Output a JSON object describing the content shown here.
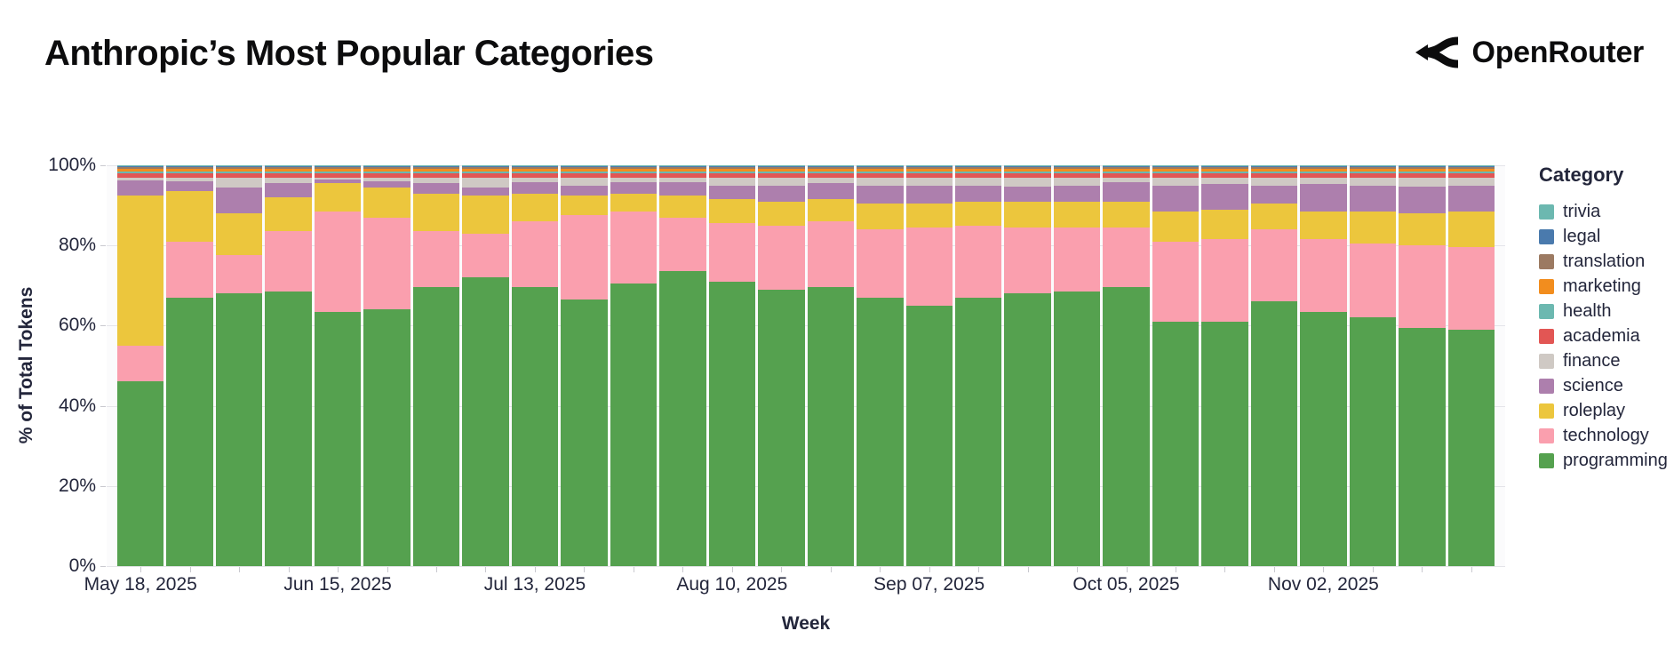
{
  "header": {
    "title": "Anthropic’s Most Popular Categories",
    "brand": "OpenRouter"
  },
  "chart_data": {
    "type": "bar",
    "variant": "stacked-100-percent",
    "title": "Anthropic’s Most Popular Categories",
    "xlabel": "Week",
    "ylabel": "% of Total Tokens",
    "legend_title": "Category",
    "legend_position": "right",
    "ylim": [
      0,
      100
    ],
    "yticks": [
      0,
      20,
      40,
      60,
      80,
      100
    ],
    "ytick_labels": [
      "0%",
      "20%",
      "40%",
      "60%",
      "80%",
      "100%"
    ],
    "x": [
      "May 18, 2025",
      "May 25, 2025",
      "Jun 01, 2025",
      "Jun 08, 2025",
      "Jun 15, 2025",
      "Jun 22, 2025",
      "Jun 29, 2025",
      "Jul 06, 2025",
      "Jul 13, 2025",
      "Jul 20, 2025",
      "Jul 27, 2025",
      "Aug 03, 2025",
      "Aug 10, 2025",
      "Aug 17, 2025",
      "Aug 24, 2025",
      "Aug 31, 2025",
      "Sep 07, 2025",
      "Sep 14, 2025",
      "Sep 21, 2025",
      "Sep 28, 2025",
      "Oct 05, 2025",
      "Oct 12, 2025",
      "Oct 19, 2025",
      "Oct 26, 2025",
      "Nov 02, 2025",
      "Nov 09, 2025",
      "Nov 16, 2025",
      "Nov 23, 2025"
    ],
    "x_tick_indices": [
      0,
      4,
      8,
      12,
      16,
      20,
      24
    ],
    "x_tick_labels": [
      "May 18, 2025",
      "Jun 15, 2025",
      "Jul 13, 2025",
      "Aug 10, 2025",
      "Sep 07, 2025",
      "Oct 05, 2025",
      "Nov 02, 2025"
    ],
    "grid": true,
    "series": [
      {
        "name": "trivia",
        "color": "#6cb8b0",
        "values": [
          0.2,
          0.2,
          0.2,
          0.2,
          0.2,
          0.2,
          0.2,
          0.2,
          0.2,
          0.2,
          0.2,
          0.2,
          0.2,
          0.2,
          0.2,
          0.2,
          0.2,
          0.2,
          0.2,
          0.2,
          0.2,
          0.2,
          0.2,
          0.2,
          0.2,
          0.2,
          0.2,
          0.2
        ]
      },
      {
        "name": "legal",
        "color": "#4a7aad",
        "values": [
          0.2,
          0.2,
          0.2,
          0.2,
          0.2,
          0.2,
          0.2,
          0.2,
          0.2,
          0.2,
          0.2,
          0.2,
          0.2,
          0.2,
          0.2,
          0.2,
          0.2,
          0.2,
          0.2,
          0.2,
          0.2,
          0.2,
          0.2,
          0.2,
          0.2,
          0.2,
          0.2,
          0.2
        ]
      },
      {
        "name": "translation",
        "color": "#9c7a62",
        "values": [
          0.4,
          0.4,
          0.4,
          0.4,
          0.4,
          0.4,
          0.4,
          0.4,
          0.4,
          0.4,
          0.4,
          0.4,
          0.4,
          0.4,
          0.4,
          0.4,
          0.4,
          0.4,
          0.4,
          0.4,
          0.4,
          0.4,
          0.4,
          0.4,
          0.4,
          0.4,
          0.4,
          0.4
        ]
      },
      {
        "name": "marketing",
        "color": "#f28d1e",
        "values": [
          0.7,
          0.7,
          0.7,
          0.7,
          0.7,
          0.7,
          0.7,
          0.7,
          0.7,
          0.7,
          0.7,
          0.7,
          0.7,
          0.7,
          0.7,
          0.7,
          0.7,
          0.7,
          0.7,
          0.7,
          0.7,
          0.7,
          0.7,
          0.7,
          0.7,
          0.7,
          0.7,
          0.7
        ]
      },
      {
        "name": "health",
        "color": "#6cb8b0",
        "values": [
          0.6,
          0.6,
          0.6,
          0.6,
          0.6,
          0.6,
          0.6,
          0.6,
          0.6,
          0.6,
          0.6,
          0.6,
          0.6,
          0.6,
          0.6,
          0.6,
          0.6,
          0.6,
          0.6,
          0.6,
          0.6,
          0.6,
          0.6,
          0.6,
          0.6,
          0.6,
          0.6,
          0.6
        ]
      },
      {
        "name": "academia",
        "color": "#e25654",
        "values": [
          1.1,
          1.1,
          1.1,
          1.1,
          1.1,
          1.1,
          1.1,
          1.1,
          1.1,
          1.1,
          1.1,
          1.1,
          1.1,
          1.1,
          1.1,
          1.1,
          1.1,
          1.1,
          1.1,
          1.1,
          1.1,
          1.1,
          1.1,
          1.1,
          1.1,
          1.1,
          1.1,
          1.1
        ]
      },
      {
        "name": "finance",
        "color": "#cfc9c4",
        "values": [
          0.6,
          0.8,
          2.3,
          1.3,
          0.3,
          0.8,
          1.3,
          2.3,
          1.0,
          1.8,
          1.0,
          1.0,
          1.8,
          1.8,
          1.3,
          1.8,
          1.8,
          1.8,
          2.1,
          1.8,
          1.0,
          1.8,
          1.5,
          1.8,
          1.5,
          1.8,
          2.1,
          1.8
        ]
      },
      {
        "name": "science",
        "color": "#ad7fad",
        "values": [
          3.7,
          2.5,
          6.5,
          3.5,
          1.0,
          1.5,
          2.5,
          2.0,
          2.8,
          2.5,
          2.8,
          3.3,
          3.5,
          4.0,
          4.0,
          4.5,
          4.5,
          4.0,
          3.7,
          4.0,
          4.8,
          6.5,
          6.3,
          4.5,
          6.8,
          6.5,
          6.7,
          6.5
        ]
      },
      {
        "name": "roleplay",
        "color": "#ecc63d",
        "values": [
          37.5,
          12.5,
          10.5,
          8.5,
          7.0,
          7.5,
          9.5,
          9.5,
          7.0,
          5.0,
          4.5,
          5.5,
          6.0,
          6.0,
          5.5,
          6.5,
          6.0,
          6.0,
          6.5,
          6.5,
          6.5,
          7.5,
          7.5,
          6.5,
          7.0,
          8.0,
          8.0,
          9.0
        ]
      },
      {
        "name": "technology",
        "color": "#fa9fae",
        "values": [
          9.0,
          14.0,
          9.5,
          15.0,
          25.0,
          23.0,
          14.0,
          11.0,
          16.5,
          21.0,
          18.0,
          13.5,
          14.5,
          16.0,
          16.5,
          17.0,
          19.5,
          18.0,
          16.5,
          16.0,
          15.0,
          20.0,
          20.5,
          18.0,
          18.0,
          18.5,
          20.5,
          20.5
        ]
      },
      {
        "name": "programming",
        "color": "#55a14f",
        "values": [
          46.0,
          67.0,
          68.0,
          68.5,
          63.5,
          64.0,
          69.5,
          72.0,
          69.5,
          66.5,
          70.5,
          73.5,
          71.0,
          69.0,
          69.5,
          67.0,
          65.0,
          67.0,
          68.0,
          68.5,
          69.5,
          61.0,
          61.0,
          66.0,
          63.5,
          62.0,
          59.5,
          59.0
        ]
      }
    ]
  }
}
